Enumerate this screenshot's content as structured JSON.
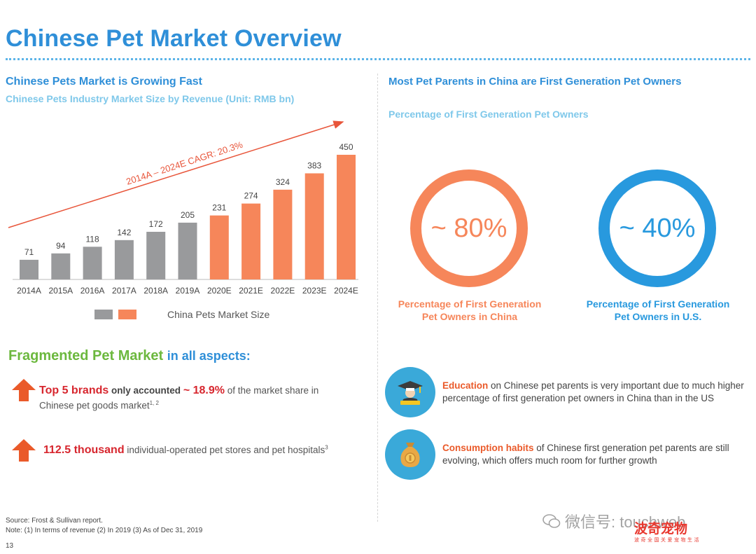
{
  "header": {
    "title": "Chinese Pet Market Overview"
  },
  "left": {
    "heading": "Chinese Pets Market is Growing Fast",
    "subheading": "Chinese Pets Industry Market Size by Revenue (Unit: RMB bn)"
  },
  "chart_data": {
    "type": "bar",
    "title": "Chinese Pets Industry Market Size by Revenue (Unit: RMB bn)",
    "categories": [
      "2014A",
      "2015A",
      "2016A",
      "2017A",
      "2018A",
      "2019A",
      "2020E",
      "2021E",
      "2022E",
      "2023E",
      "2024E"
    ],
    "values": [
      71,
      94,
      118,
      142,
      172,
      205,
      231,
      274,
      324,
      383,
      450
    ],
    "actual_count": 6,
    "ylim": [
      0,
      450
    ],
    "annotation": "2014A – 2024E CAGR: 20.3%",
    "legend_label": "China Pets Market Size",
    "xlabel": "",
    "ylabel": "",
    "colors": {
      "actual": "#999a9c",
      "forecast": "#f6865a",
      "trend": "#e8553a"
    }
  },
  "fragmented": {
    "heading_green": "Fragmented Pet Market",
    "heading_blue": "in all aspects:",
    "fact1": {
      "highlight": "Top 5 brands",
      "mid": "only accounted",
      "value": "~ 18.9%",
      "rest1": "of the market share in",
      "rest2": "Chinese pet goods market",
      "note": "1, 2"
    },
    "fact2": {
      "value": "112.5 thousand",
      "rest": "individual-operated pet stores and pet hospitals",
      "note": "3"
    }
  },
  "footer": {
    "source": "Source: Frost & Sullivan report.",
    "note": "Note: (1) In terms of revenue (2) In 2019 (3) As of Dec 31, 2019",
    "page": "13"
  },
  "right": {
    "heading": "Most Pet Parents in China are First Generation Pet Owners",
    "subheading": "Percentage of First Generation Pet Owners",
    "china": {
      "value": "~ 80%",
      "caption1": "Percentage of First Generation",
      "caption2": "Pet Owners in China"
    },
    "us": {
      "value": "~ 40%",
      "caption1": "Percentage of First Generation",
      "caption2": "Pet Owners in U.S."
    },
    "education": {
      "label": "Education",
      "text": "on Chinese pet parents is very important due to much higher percentage of first generation pet owners in China than in the US"
    },
    "consumption": {
      "label": "Consumption habits",
      "text": "of Chinese first generation pet parents are still evolving, which offers much room for further growth"
    }
  },
  "watermark": {
    "wechat": "微信号: touchweb",
    "logo": "波奇宠物",
    "tagline": "波奇全国关爱宠物生活"
  }
}
